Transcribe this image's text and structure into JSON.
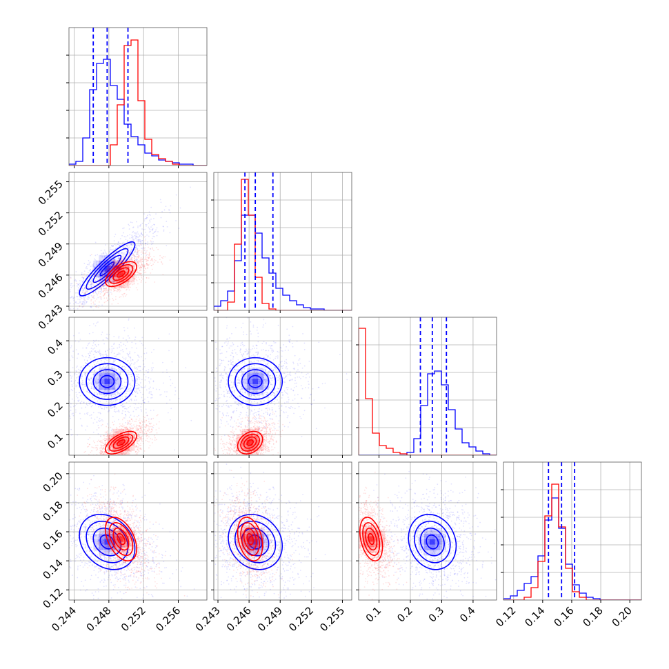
{
  "chart_data": {
    "type": "corner",
    "dimensions": 4,
    "colors": {
      "blue": "#0000ff",
      "red": "#ff0000",
      "grid": "#b0b0b0",
      "axes": "#000000"
    },
    "grid": true,
    "axes": [
      {
        "index": 0,
        "range": [
          0.2434,
          0.2593
        ],
        "ticks": [
          0.244,
          0.248,
          0.252,
          0.256
        ],
        "tick_labels": [
          "0.244",
          "0.248",
          "0.252",
          "0.256"
        ]
      },
      {
        "index": 1,
        "range": [
          0.2426,
          0.2559
        ],
        "ticks": [
          0.243,
          0.246,
          0.249,
          0.252,
          0.255
        ],
        "tick_labels": [
          "0.243",
          "0.246",
          "0.249",
          "0.252",
          "0.255"
        ]
      },
      {
        "index": 2,
        "range": [
          0.035,
          0.475
        ],
        "ticks": [
          0.1,
          0.2,
          0.3,
          0.4
        ],
        "tick_labels": [
          "0.1",
          "0.2",
          "0.3",
          "0.4"
        ]
      },
      {
        "index": 3,
        "range": [
          0.113,
          0.208
        ],
        "ticks": [
          0.12,
          0.14,
          0.16,
          0.18,
          0.2
        ],
        "tick_labels": [
          "0.12",
          "0.14",
          "0.16",
          "0.18",
          "0.20"
        ]
      }
    ],
    "series": [
      {
        "color": "blue",
        "means": [
          0.2478,
          0.2466,
          0.27,
          0.153
        ],
        "sigmas": [
          0.0016,
          0.0013,
          0.038,
          0.0095
        ],
        "quantiles": [
          [
            0.2462,
            0.2478,
            0.2502
          ],
          [
            0.2456,
            0.2466,
            0.2483
          ],
          [
            0.232,
            0.27,
            0.315
          ],
          [
            0.144,
            0.153,
            0.162
          ]
        ],
        "histograms": [
          {
            "edges": [
              0.2434,
              0.2593
            ],
            "counts": [
              0.01,
              0.03,
              0.2,
              0.55,
              0.74,
              0.77,
              0.58,
              0.48,
              0.3,
              0.21,
              0.15,
              0.09,
              0.07,
              0.04,
              0.03,
              0.02,
              0.01,
              0.01,
              0.0,
              0.0
            ]
          },
          {
            "edges": [
              0.2426,
              0.2559
            ],
            "counts": [
              0.03,
              0.07,
              0.14,
              0.36,
              0.69,
              0.69,
              0.56,
              0.38,
              0.27,
              0.16,
              0.11,
              0.07,
              0.04,
              0.02,
              0.01,
              0.01,
              0.0,
              0.0,
              0.0,
              0.0
            ]
          },
          {
            "edges": [
              0.035,
              0.475
            ],
            "counts": [
              0.0,
              0.0,
              0.0,
              0.0,
              0.0,
              0.0,
              0.0,
              0.02,
              0.12,
              0.36,
              0.59,
              0.61,
              0.51,
              0.33,
              0.19,
              0.09,
              0.06,
              0.03,
              0.01,
              0.0
            ]
          },
          {
            "edges": [
              0.113,
              0.208
            ],
            "counts": [
              0.01,
              0.03,
              0.07,
              0.12,
              0.17,
              0.32,
              0.58,
              0.74,
              0.52,
              0.26,
              0.11,
              0.05,
              0.02,
              0.01,
              0.0,
              0.0,
              0.0,
              0.0,
              0.0,
              0.0
            ]
          }
        ]
      },
      {
        "color": "red",
        "means": [
          0.2494,
          0.2461,
          0.075,
          0.155
        ],
        "sigmas": [
          0.0009,
          0.0006,
          0.018,
          0.0075
        ],
        "histograms": [
          {
            "edges": [
              0.2434,
              0.2593
            ],
            "counts": [
              0.0,
              0.0,
              0.0,
              0.0,
              0.0,
              0.0,
              0.15,
              0.44,
              0.87,
              0.91,
              0.47,
              0.19,
              0.08,
              0.05,
              0.03,
              0.01,
              0.0,
              0.0,
              0.0,
              0.0
            ]
          },
          {
            "edges": [
              0.2426,
              0.2559
            ],
            "counts": [
              0.0,
              0.0,
              0.06,
              0.48,
              0.95,
              0.69,
              0.24,
              0.05,
              0.01,
              0.0,
              0.0,
              0.0,
              0.0,
              0.0,
              0.0,
              0.0,
              0.0,
              0.0,
              0.0,
              0.0
            ]
          },
          {
            "edges": [
              0.035,
              0.475
            ],
            "counts": [
              0.92,
              0.41,
              0.16,
              0.07,
              0.05,
              0.02,
              0.01,
              0.0,
              0.0,
              0.0,
              0.0,
              0.0,
              0.0,
              0.0,
              0.0,
              0.0,
              0.0,
              0.0,
              0.0,
              0.0
            ]
          },
          {
            "edges": [
              0.113,
              0.208
            ],
            "counts": [
              0.0,
              0.0,
              0.0,
              0.02,
              0.09,
              0.28,
              0.61,
              0.84,
              0.53,
              0.23,
              0.06,
              0.02,
              0.0,
              0.0,
              0.0,
              0.0,
              0.0,
              0.0,
              0.0,
              0.0
            ]
          }
        ]
      }
    ],
    "correlations": [
      {
        "pair": [
          0,
          1
        ],
        "blue": 0.9,
        "red": 0.6
      },
      {
        "pair": [
          0,
          2
        ],
        "blue": 0.0,
        "red": 0.6
      },
      {
        "pair": [
          1,
          2
        ],
        "blue": 0.0,
        "red": 0.3
      },
      {
        "pair": [
          0,
          3
        ],
        "blue": -0.25,
        "red": -0.45
      },
      {
        "pair": [
          1,
          3
        ],
        "blue": -0.15,
        "red": -0.3
      },
      {
        "pair": [
          2,
          3
        ],
        "blue": -0.15,
        "red": -0.35
      }
    ]
  }
}
